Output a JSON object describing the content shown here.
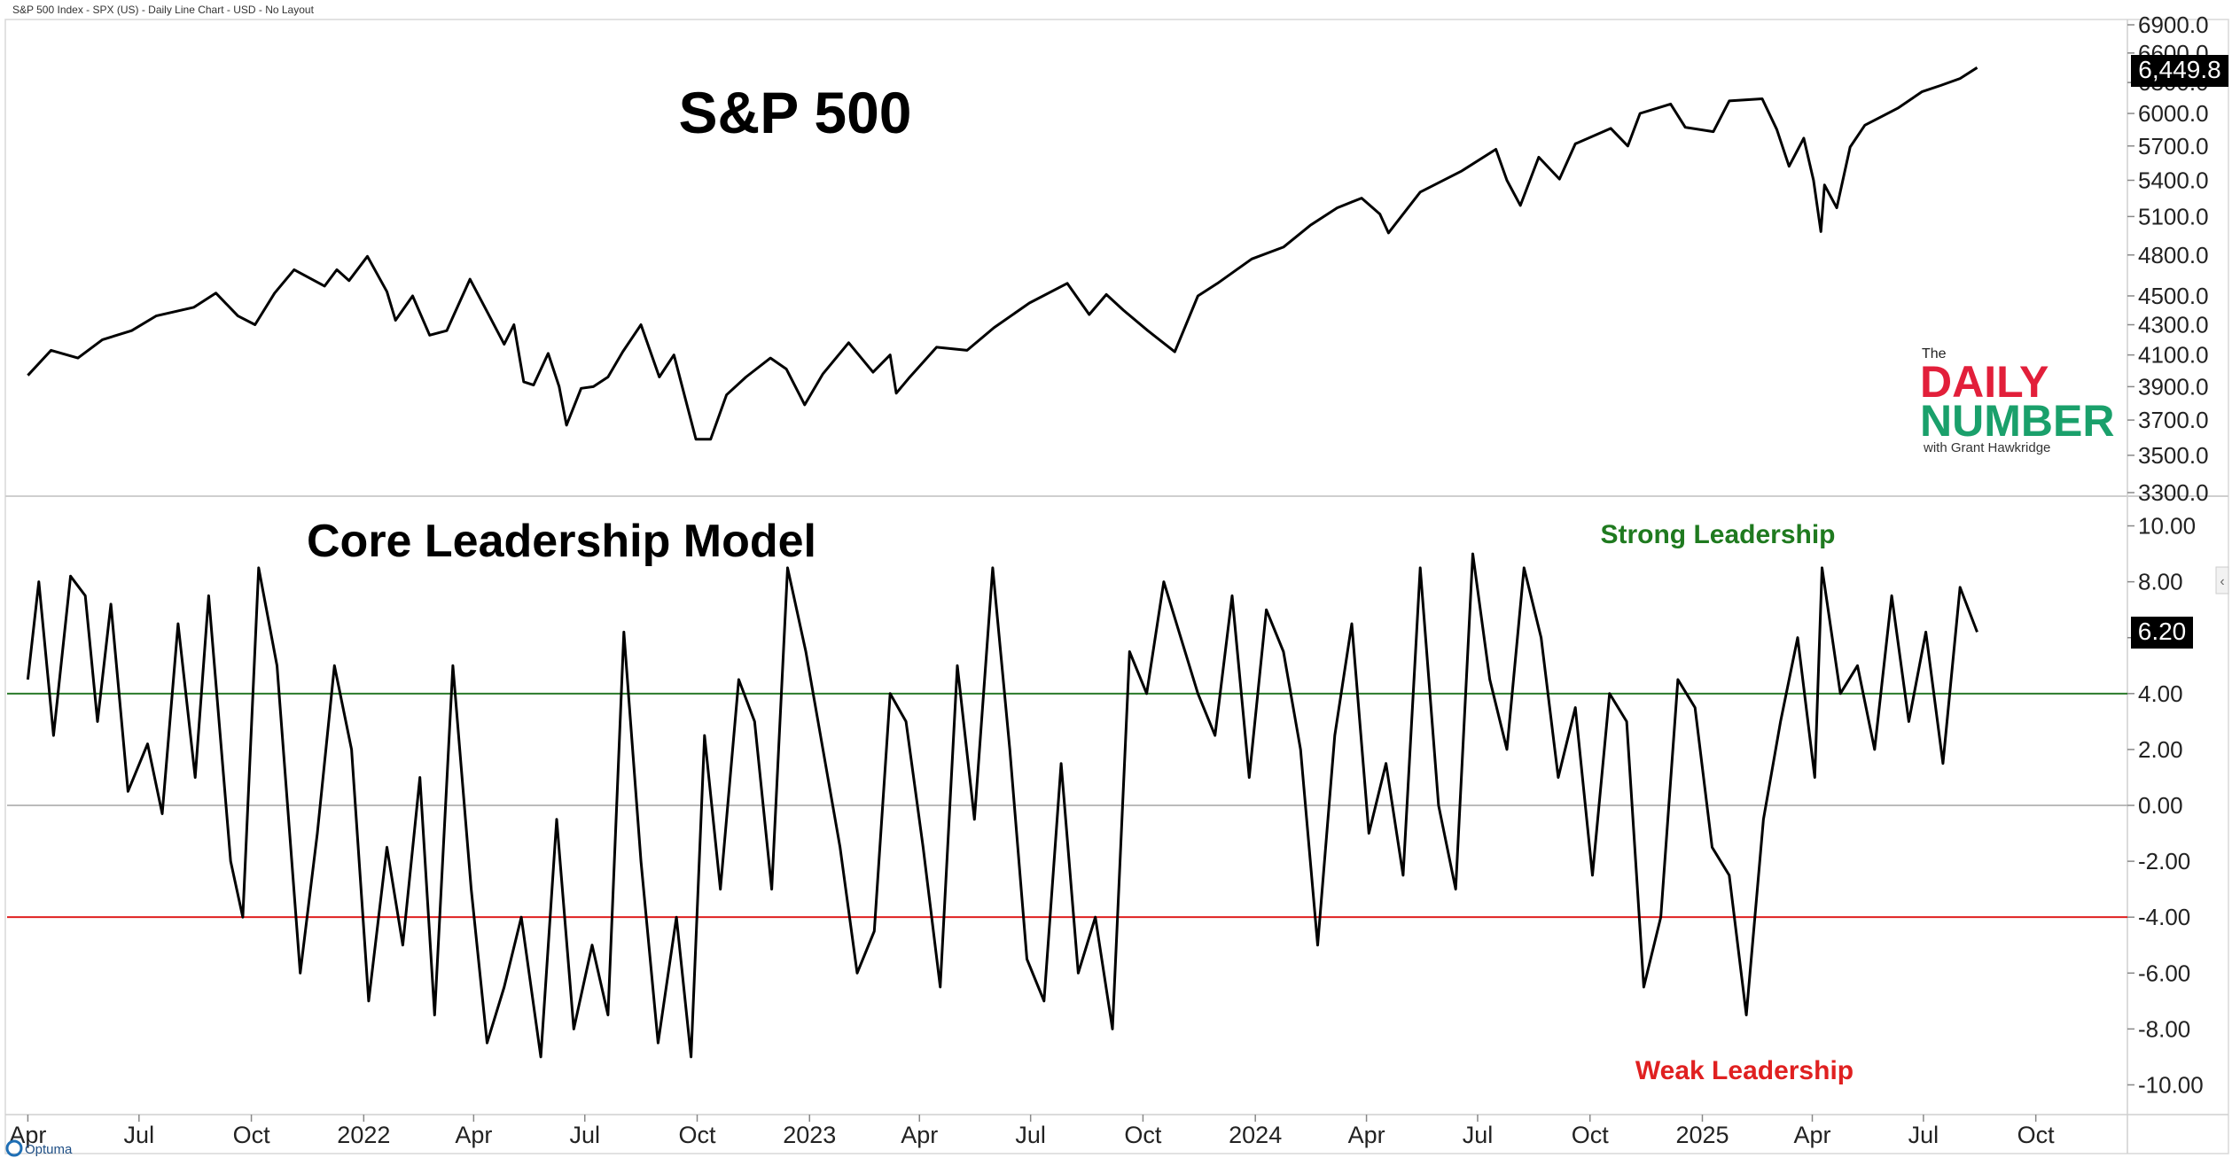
{
  "header": {
    "chart_descriptor": "S&P 500 Index - SPX (US) - Daily Line Chart - USD - No Layout"
  },
  "branding": {
    "optuma_label": "Optuma"
  },
  "logo": {
    "line1": "The",
    "line2": "DAILY",
    "line3": "NUMBER",
    "line4": "with Grant Hawkridge",
    "colors": {
      "daily": "#e21f3a",
      "number": "#1aa06b"
    }
  },
  "colors": {
    "price_line": "#000000",
    "osc_line": "#000000",
    "strong_line": "#2a7a2a",
    "weak_line": "#e02020",
    "zero_line": "#bbbbbb",
    "strong_text": "#1f7a1f",
    "weak_text": "#e02020",
    "badge_bg": "#000000",
    "badge_fg": "#ffffff"
  },
  "chart_data": [
    {
      "type": "line",
      "title": "S&P 500",
      "yaxis": {
        "scale": "log",
        "ylim": [
          3300,
          6900
        ],
        "tick_labels": [
          "6900.0",
          "6600.0",
          "6300.0",
          "6000.0",
          "5700.0",
          "5400.0",
          "5100.0",
          "4800.0",
          "4500.0",
          "4300.0",
          "4100.0",
          "3900.0",
          "3700.0",
          "3500.0",
          "3300.0"
        ]
      },
      "last_value_label": "6,449.8",
      "series": [
        {
          "x": [
            "2021-04-01",
            "2021-04-20",
            "2021-05-12",
            "2021-06-01",
            "2021-06-25",
            "2021-07-15",
            "2021-08-15",
            "2021-09-02",
            "2021-09-20",
            "2021-10-04",
            "2021-10-20",
            "2021-11-05",
            "2021-11-30",
            "2021-12-10",
            "2021-12-20",
            "2022-01-04",
            "2022-01-20",
            "2022-01-27",
            "2022-02-10",
            "2022-02-24",
            "2022-03-10",
            "2022-03-29",
            "2022-04-12",
            "2022-04-26",
            "2022-05-04",
            "2022-05-12",
            "2022-05-20",
            "2022-06-01",
            "2022-06-10",
            "2022-06-16",
            "2022-06-28",
            "2022-07-08",
            "2022-07-20",
            "2022-08-01",
            "2022-08-16",
            "2022-08-31",
            "2022-09-12",
            "2022-09-30",
            "2022-10-12",
            "2022-10-25",
            "2022-11-10",
            "2022-11-30",
            "2022-12-13",
            "2022-12-28",
            "2023-01-12",
            "2023-02-02",
            "2023-02-22",
            "2023-03-08",
            "2023-03-13",
            "2023-03-23",
            "2023-04-15",
            "2023-05-10",
            "2023-06-01",
            "2023-06-30",
            "2023-07-31",
            "2023-08-18",
            "2023-09-01",
            "2023-09-15",
            "2023-10-05",
            "2023-10-27",
            "2023-11-15",
            "2023-12-01",
            "2023-12-29",
            "2024-01-24",
            "2024-02-15",
            "2024-03-08",
            "2024-03-28",
            "2024-04-12",
            "2024-04-19",
            "2024-05-15",
            "2024-06-18",
            "2024-07-16",
            "2024-07-25",
            "2024-08-05",
            "2024-08-20",
            "2024-09-06",
            "2024-09-19",
            "2024-10-18",
            "2024-11-01",
            "2024-11-11",
            "2024-12-06",
            "2024-12-18",
            "2025-01-10",
            "2025-01-23",
            "2025-02-19",
            "2025-03-03",
            "2025-03-13",
            "2025-03-25",
            "2025-04-02",
            "2025-04-08",
            "2025-04-11",
            "2025-04-21",
            "2025-05-02",
            "2025-05-14",
            "2025-06-10",
            "2025-06-30",
            "2025-07-15",
            "2025-07-31",
            "2025-08-14"
          ],
          "y": [
            3970,
            4130,
            4080,
            4200,
            4260,
            4360,
            4420,
            4520,
            4360,
            4300,
            4520,
            4690,
            4570,
            4690,
            4610,
            4790,
            4530,
            4330,
            4500,
            4230,
            4260,
            4620,
            4390,
            4170,
            4300,
            3930,
            3910,
            4110,
            3900,
            3670,
            3890,
            3900,
            3960,
            4120,
            4300,
            3960,
            4100,
            3590,
            3590,
            3850,
            3960,
            4080,
            4010,
            3790,
            3980,
            4180,
            3990,
            4100,
            3860,
            3950,
            4150,
            4130,
            4280,
            4450,
            4590,
            4370,
            4510,
            4400,
            4260,
            4120,
            4500,
            4590,
            4770,
            4860,
            5030,
            5170,
            5250,
            5120,
            4970,
            5300,
            5480,
            5670,
            5400,
            5190,
            5600,
            5410,
            5720,
            5860,
            5700,
            6000,
            6090,
            5870,
            5830,
            6120,
            6140,
            5850,
            5520,
            5770,
            5400,
            4980,
            5360,
            5170,
            5690,
            5890,
            6050,
            6210,
            6270,
            6340,
            6449.8
          ]
        }
      ]
    },
    {
      "type": "line",
      "title": "Core Leadership Model",
      "yaxis": {
        "ylim": [
          -11,
          11
        ],
        "tick_labels": [
          "10.00",
          "8.00",
          "6.00",
          "4.00",
          "2.00",
          "0.00",
          "-2.00",
          "-4.00",
          "-6.00",
          "-8.00",
          "-10.00"
        ]
      },
      "last_value_label": "6.20",
      "reference_lines": [
        {
          "value": 4,
          "label": "Strong Leadership"
        },
        {
          "value": 0,
          "label": ""
        },
        {
          "value": -4,
          "label": "Weak Leadership"
        }
      ],
      "series": [
        {
          "x": [
            "2021-04-01",
            "2021-04-10",
            "2021-04-22",
            "2021-05-06",
            "2021-05-18",
            "2021-05-28",
            "2021-06-08",
            "2021-06-22",
            "2021-07-08",
            "2021-07-20",
            "2021-08-02",
            "2021-08-16",
            "2021-08-27",
            "2021-09-14",
            "2021-09-24",
            "2021-10-07",
            "2021-10-22",
            "2021-11-10",
            "2021-11-24",
            "2021-12-08",
            "2021-12-22",
            "2022-01-05",
            "2022-01-20",
            "2022-02-02",
            "2022-02-16",
            "2022-02-28",
            "2022-03-15",
            "2022-03-30",
            "2022-04-12",
            "2022-04-26",
            "2022-05-10",
            "2022-05-26",
            "2022-06-08",
            "2022-06-22",
            "2022-07-07",
            "2022-07-20",
            "2022-08-02",
            "2022-08-16",
            "2022-08-30",
            "2022-09-14",
            "2022-09-26",
            "2022-10-07",
            "2022-10-20",
            "2022-11-04",
            "2022-11-17",
            "2022-12-01",
            "2022-12-14",
            "2022-12-29",
            "2023-01-12",
            "2023-01-26",
            "2023-02-09",
            "2023-02-23",
            "2023-03-08",
            "2023-03-21",
            "2023-04-04",
            "2023-04-18",
            "2023-05-02",
            "2023-05-16",
            "2023-05-31",
            "2023-06-14",
            "2023-06-28",
            "2023-07-12",
            "2023-07-26",
            "2023-08-09",
            "2023-08-23",
            "2023-09-06",
            "2023-09-20",
            "2023-10-04",
            "2023-10-18",
            "2023-11-01",
            "2023-11-15",
            "2023-11-29",
            "2023-12-13",
            "2023-12-27",
            "2024-01-10",
            "2024-01-24",
            "2024-02-07",
            "2024-02-21",
            "2024-03-06",
            "2024-03-20",
            "2024-04-03",
            "2024-04-17",
            "2024-05-01",
            "2024-05-15",
            "2024-05-30",
            "2024-06-13",
            "2024-06-27",
            "2024-07-11",
            "2024-07-25",
            "2024-08-08",
            "2024-08-22",
            "2024-09-05",
            "2024-09-19",
            "2024-10-03",
            "2024-10-17",
            "2024-10-31",
            "2024-11-14",
            "2024-11-28",
            "2024-12-12",
            "2024-12-26",
            "2025-01-09",
            "2025-01-23",
            "2025-02-06",
            "2025-02-20",
            "2025-03-06",
            "2025-03-20",
            "2025-04-03",
            "2025-04-09",
            "2025-04-24",
            "2025-05-08",
            "2025-05-22",
            "2025-06-05",
            "2025-06-19",
            "2025-07-03",
            "2025-07-17",
            "2025-07-31",
            "2025-08-14"
          ],
          "y": [
            4.5,
            8.0,
            2.5,
            8.2,
            7.5,
            3.0,
            7.2,
            0.5,
            2.2,
            -0.3,
            6.5,
            1.0,
            7.5,
            -2.0,
            -4.0,
            8.5,
            5.0,
            -6.0,
            -1.0,
            5.0,
            2.0,
            -7.0,
            -1.5,
            -5.0,
            1.0,
            -7.5,
            5.0,
            -3.0,
            -8.5,
            -6.5,
            -4.0,
            -9.0,
            -0.5,
            -8.0,
            -5.0,
            -7.5,
            6.2,
            -2.0,
            -8.5,
            -4.0,
            -9.0,
            2.5,
            -3.0,
            4.5,
            3.0,
            -3.0,
            8.5,
            5.5,
            2.0,
            -1.5,
            -6.0,
            -4.5,
            4.0,
            3.0,
            -1.5,
            -6.5,
            5.0,
            -0.5,
            8.5,
            2.0,
            -5.5,
            -7.0,
            1.5,
            -6.0,
            -4.0,
            -8.0,
            5.5,
            4.0,
            8.0,
            6.0,
            4.0,
            2.5,
            7.5,
            1.0,
            7.0,
            5.5,
            2.0,
            -5.0,
            2.5,
            6.5,
            -1.0,
            1.5,
            -2.5,
            8.5,
            0.0,
            -3.0,
            9.0,
            4.5,
            2.0,
            8.5,
            6.0,
            1.0,
            3.5,
            -2.5,
            4.0,
            3.0,
            -6.5,
            -4.0,
            4.5,
            3.5,
            -1.5,
            -2.5,
            -7.5,
            -0.5,
            3.0,
            6.0,
            1.0,
            8.5,
            4.0,
            5.0,
            2.0,
            7.5,
            3.0,
            6.2,
            1.5,
            7.8,
            6.2
          ]
        }
      ]
    }
  ],
  "xaxis": {
    "tick_labels": [
      {
        "date": "2021-04-01",
        "label": "Apr"
      },
      {
        "date": "2021-07-01",
        "label": "Jul"
      },
      {
        "date": "2021-10-01",
        "label": "Oct"
      },
      {
        "date": "2022-01-01",
        "label": "2022"
      },
      {
        "date": "2022-04-01",
        "label": "Apr"
      },
      {
        "date": "2022-07-01",
        "label": "Jul"
      },
      {
        "date": "2022-10-01",
        "label": "Oct"
      },
      {
        "date": "2023-01-01",
        "label": "2023"
      },
      {
        "date": "2023-04-01",
        "label": "Apr"
      },
      {
        "date": "2023-07-01",
        "label": "Jul"
      },
      {
        "date": "2023-10-01",
        "label": "Oct"
      },
      {
        "date": "2024-01-01",
        "label": "2024"
      },
      {
        "date": "2024-04-01",
        "label": "Apr"
      },
      {
        "date": "2024-07-01",
        "label": "Jul"
      },
      {
        "date": "2024-10-01",
        "label": "Oct"
      },
      {
        "date": "2025-01-01",
        "label": "2025"
      },
      {
        "date": "2025-04-01",
        "label": "Apr"
      },
      {
        "date": "2025-07-01",
        "label": "Jul"
      },
      {
        "date": "2025-10-01",
        "label": "Oct"
      }
    ]
  }
}
